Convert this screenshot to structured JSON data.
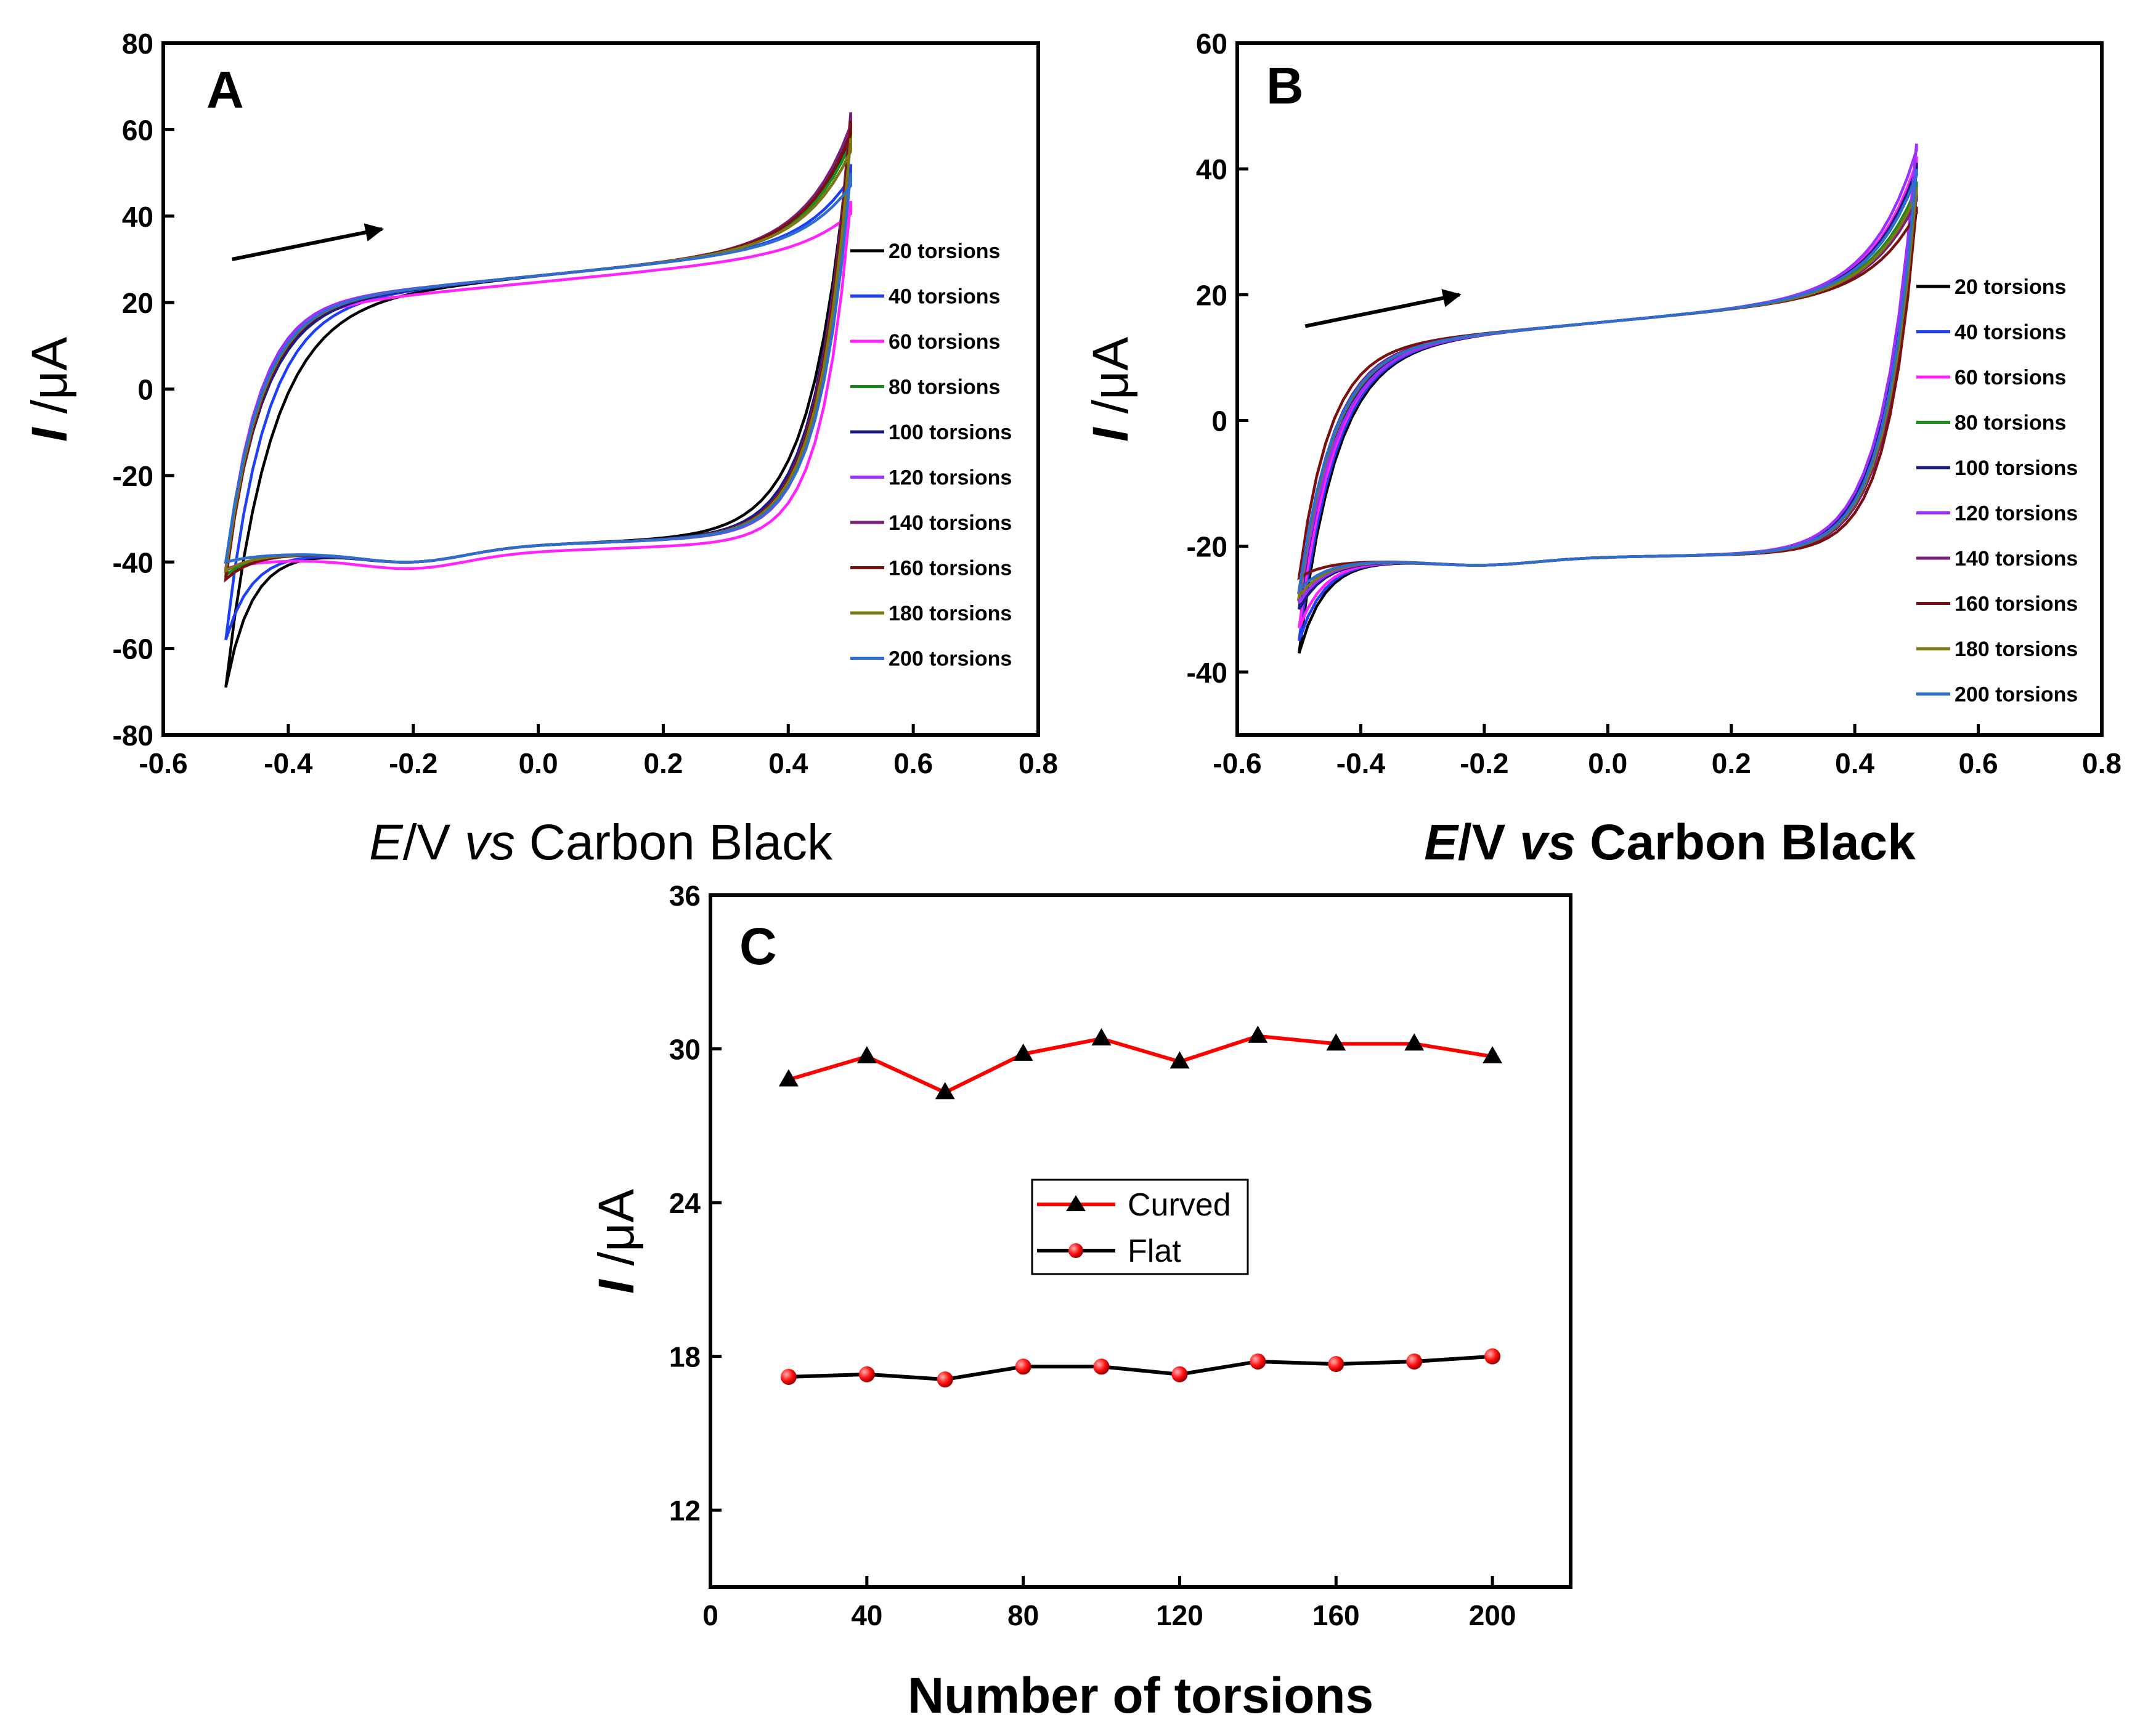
{
  "chart_data": [
    {
      "panel": "A",
      "type": "line",
      "subtype": "cyclic voltammogram",
      "xlabel": {
        "italic": "E",
        "normal": "/V ",
        "italic2": "vs",
        "rest": " Carbon Black"
      },
      "ylabel": {
        "italic": "I",
        "rest": " /μA"
      },
      "xlim": [
        -0.6,
        0.8
      ],
      "ylim": [
        -80,
        80
      ],
      "xticks": [
        "-0.6",
        "-0.4",
        "-0.2",
        "0.0",
        "0.2",
        "0.4",
        "0.6",
        "0.8"
      ],
      "yticks": [
        "-80",
        "-60",
        "-40",
        "-20",
        "0",
        "20",
        "40",
        "60",
        "80"
      ],
      "arrow": {
        "from": [
          -0.49,
          30
        ],
        "to": [
          -0.25,
          37
        ]
      },
      "series": [
        {
          "name": "20 torsions",
          "color": "#000000",
          "upper_end": 61,
          "lower_start": -69,
          "dy": 0,
          "sweep": 1.5
        },
        {
          "name": "40 torsions",
          "color": "#1f3ff5",
          "upper_end": 52,
          "lower_start": -58,
          "dy": 0,
          "sweep": 0.6
        },
        {
          "name": "60 torsions",
          "color": "#ff22ff",
          "upper_end": 45,
          "lower_start": -40,
          "dy": -1.5,
          "sweep": -0.6
        },
        {
          "name": "80 torsions",
          "color": "#1d8a1d",
          "upper_end": 60,
          "lower_start": -43,
          "dy": 0,
          "sweep": 0.2
        },
        {
          "name": "100 torsions",
          "color": "#1a1a80",
          "upper_end": 63,
          "lower_start": -42,
          "dy": 0,
          "sweep": 0.4
        },
        {
          "name": "120 torsions",
          "color": "#9b30ff",
          "upper_end": 58,
          "lower_start": -42,
          "dy": 0,
          "sweep": -0.4
        },
        {
          "name": "140 torsions",
          "color": "#7a1f7a",
          "upper_end": 64,
          "lower_start": -44,
          "dy": 0,
          "sweep": 0
        },
        {
          "name": "160 torsions",
          "color": "#7a1010",
          "upper_end": 62,
          "lower_start": -44,
          "dy": 0,
          "sweep": 0
        },
        {
          "name": "180 torsions",
          "color": "#7a7a10",
          "upper_end": 58,
          "lower_start": -42,
          "dy": 0,
          "sweep": 0
        },
        {
          "name": "200 torsions",
          "color": "#2e6ecc",
          "upper_end": 50,
          "lower_start": -40,
          "dy": 0,
          "sweep": 0
        }
      ]
    },
    {
      "panel": "B",
      "type": "line",
      "subtype": "cyclic voltammogram",
      "xlabel": {
        "italic": "E",
        "normal": "/V ",
        "italic2": "vs",
        "rest": " Carbon Black"
      },
      "ylabel": {
        "italic": "I",
        "rest": " /μA"
      },
      "xlim": [
        -0.6,
        0.8
      ],
      "ylim": [
        -50,
        60
      ],
      "xticks": [
        "-0.6",
        "-0.4",
        "-0.2",
        "0.0",
        "0.2",
        "0.4",
        "0.6",
        "0.8"
      ],
      "yticks": [
        "-40",
        "-20",
        "0",
        "20",
        "40",
        "60"
      ],
      "arrow": {
        "from": [
          -0.49,
          15
        ],
        "to": [
          -0.24,
          20
        ]
      },
      "series": [
        {
          "name": "20 torsions",
          "color": "#000000",
          "upper_end": 40,
          "lower_start": -37,
          "dy": 0,
          "sweep": 0.4
        },
        {
          "name": "40 torsions",
          "color": "#1f3ff5",
          "upper_end": 41,
          "lower_start": -35,
          "dy": 0,
          "sweep": 0.3
        },
        {
          "name": "60 torsions",
          "color": "#ff22ff",
          "upper_end": 42,
          "lower_start": -33,
          "dy": 0,
          "sweep": 0.2
        },
        {
          "name": "80 torsions",
          "color": "#1d8a1d",
          "upper_end": 38,
          "lower_start": -30,
          "dy": 0,
          "sweep": 0.1
        },
        {
          "name": "100 torsions",
          "color": "#1a1a80",
          "upper_end": 41,
          "lower_start": -30,
          "dy": 0,
          "sweep": 0.2
        },
        {
          "name": "120 torsions",
          "color": "#9b30ff",
          "upper_end": 44,
          "lower_start": -29,
          "dy": 0,
          "sweep": 0.4
        },
        {
          "name": "140 torsions",
          "color": "#7a1f7a",
          "upper_end": 36,
          "lower_start": -28,
          "dy": 0,
          "sweep": -0.2
        },
        {
          "name": "160 torsions",
          "color": "#7a1010",
          "upper_end": 34,
          "lower_start": -25,
          "dy": 0,
          "sweep": -0.6
        },
        {
          "name": "180 torsions",
          "color": "#7a7a10",
          "upper_end": 37,
          "lower_start": -28,
          "dy": 0,
          "sweep": 0
        },
        {
          "name": "200 torsions",
          "color": "#2e6ecc",
          "upper_end": 40,
          "lower_start": -27,
          "dy": 0,
          "sweep": 0
        }
      ]
    },
    {
      "panel": "C",
      "type": "line",
      "xlabel": "Number of torsions",
      "ylabel": {
        "italic": "I",
        "rest": " /μA"
      },
      "xlim": [
        0,
        220
      ],
      "ylim": [
        9,
        36
      ],
      "xticks": [
        "0",
        "40",
        "80",
        "120",
        "160",
        "200"
      ],
      "yticks": [
        "12",
        "18",
        "24",
        "30",
        "36"
      ],
      "x": [
        20,
        40,
        60,
        80,
        100,
        120,
        140,
        160,
        180,
        200
      ],
      "series": [
        {
          "name": "Curved",
          "line_color": "#ff0000",
          "marker": "triangle",
          "marker_color": "#000000",
          "values": [
            28.8,
            29.7,
            28.3,
            29.8,
            30.4,
            29.5,
            30.5,
            30.2,
            30.2,
            29.7
          ]
        },
        {
          "name": "Flat",
          "line_color": "#000000",
          "marker": "circle",
          "marker_color": "#ff0000",
          "values": [
            17.2,
            17.3,
            17.1,
            17.6,
            17.6,
            17.3,
            17.8,
            17.7,
            17.8,
            18.0
          ]
        }
      ]
    }
  ]
}
